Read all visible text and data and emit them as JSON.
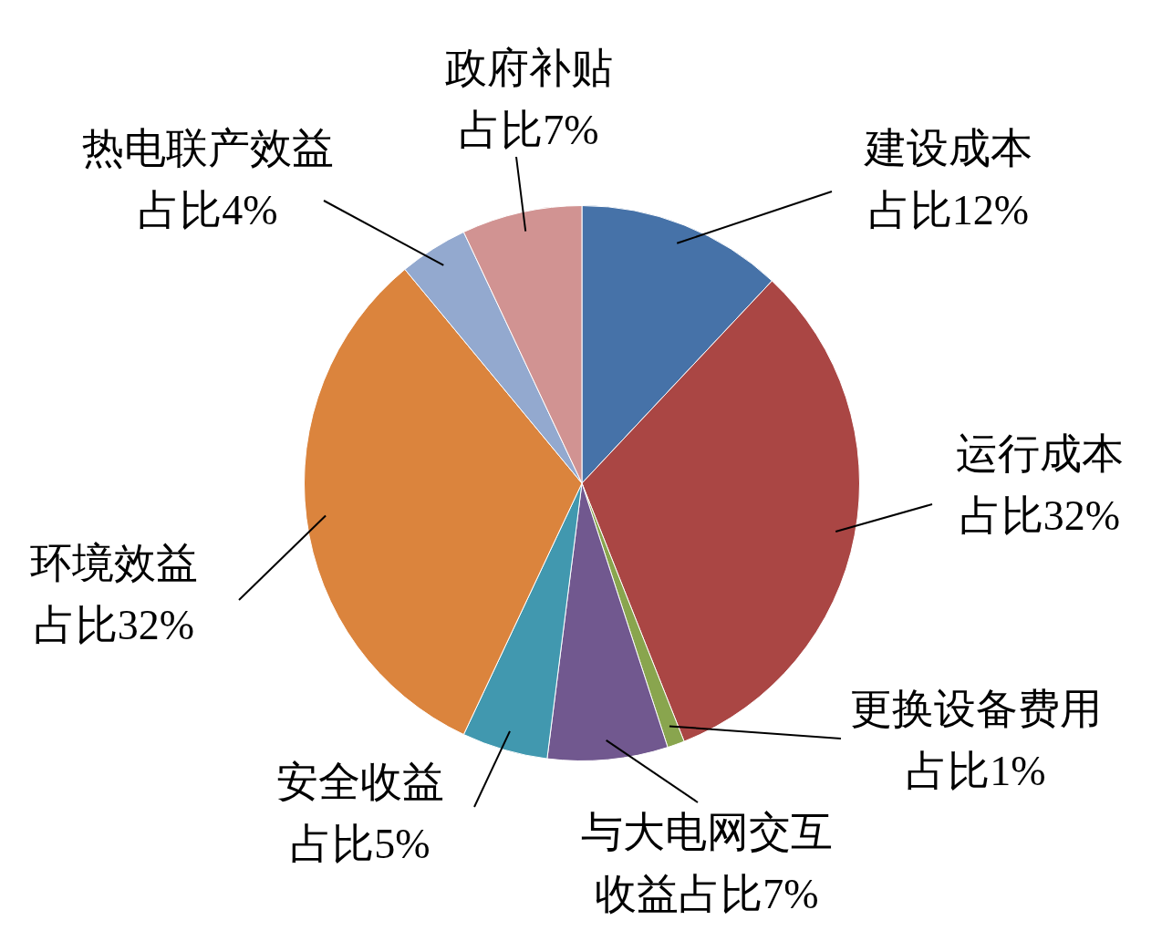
{
  "chart_data": {
    "type": "pie",
    "categories": [
      "建设成本",
      "运行成本",
      "更换设备费用",
      "与大电网交互收益",
      "安全收益",
      "环境效益",
      "热电联产效益",
      "政府补贴"
    ],
    "values": [
      12,
      32,
      1,
      7,
      5,
      32,
      4,
      7
    ],
    "colors": [
      "#4672a8",
      "#aa4644",
      "#89a54e",
      "#71588f",
      "#4198af",
      "#db843d",
      "#93a9cf",
      "#d19392"
    ],
    "value_labels": [
      "占比12%",
      "占比32%",
      "占比1%",
      "占比7%",
      "占比5%",
      "占比32%",
      "占比4%",
      "占比7%"
    ]
  }
}
